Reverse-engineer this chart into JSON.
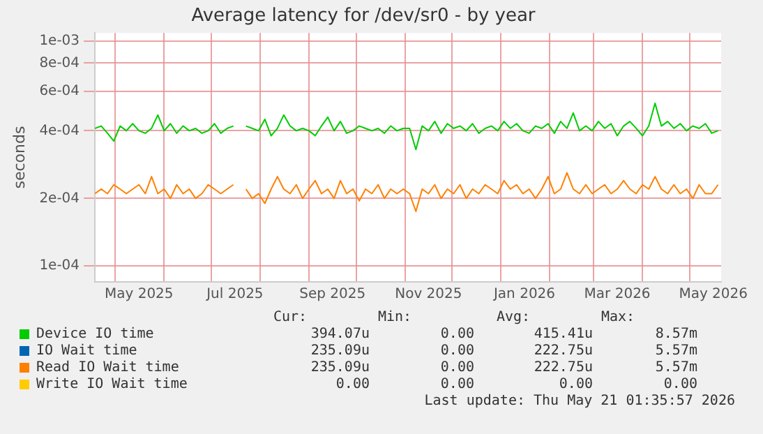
{
  "chart_data": {
    "type": "line",
    "title": "Average latency for /dev/sr0 - by year",
    "ylabel": "seconds",
    "log": "y",
    "grid": true,
    "legend": "bottom",
    "marker": "none",
    "line_style": "solid",
    "xlim": [
      "2025-04-18",
      "2026-05-21"
    ],
    "xticks": [
      {
        "value": "2025-05-01",
        "label": null
      },
      {
        "value": "2025-05-16",
        "label": "May 2025"
      },
      {
        "value": "2025-06-01",
        "label": null
      },
      {
        "value": "2025-07-01",
        "label": null
      },
      {
        "value": "2025-07-16",
        "label": "Jul 2025"
      },
      {
        "value": "2025-08-01",
        "label": null
      },
      {
        "value": "2025-09-01",
        "label": null
      },
      {
        "value": "2025-09-16",
        "label": "Sep 2025"
      },
      {
        "value": "2025-10-01",
        "label": null
      },
      {
        "value": "2025-11-01",
        "label": null
      },
      {
        "value": "2025-11-16",
        "label": "Nov 2025"
      },
      {
        "value": "2025-12-01",
        "label": null
      },
      {
        "value": "2026-01-01",
        "label": null
      },
      {
        "value": "2026-01-16",
        "label": "Jan 2026"
      },
      {
        "value": "2026-02-01",
        "label": null
      },
      {
        "value": "2026-03-01",
        "label": null
      },
      {
        "value": "2026-03-16",
        "label": "Mar 2026"
      },
      {
        "value": "2026-04-01",
        "label": null
      },
      {
        "value": "2026-05-01",
        "label": null
      },
      {
        "value": "2026-05-16",
        "label": "May 2026"
      }
    ],
    "ylim": [
      8.5e-05,
      0.00109
    ],
    "yticks": [
      {
        "value": 0.0001,
        "label": "1e-04"
      },
      {
        "value": 0.0002,
        "label": "2e-04"
      },
      {
        "value": 0.0004,
        "label": "4e-04"
      },
      {
        "value": 0.0006,
        "label": "6e-04"
      },
      {
        "value": 0.0008,
        "label": "8e-04"
      },
      {
        "value": 0.001,
        "label": "1e-03"
      }
    ],
    "x": [
      "2025-04-18",
      "2025-04-22",
      "2025-04-26",
      "2025-04-30",
      "2025-05-04",
      "2025-05-08",
      "2025-05-12",
      "2025-05-16",
      "2025-05-20",
      "2025-05-24",
      "2025-05-28",
      "2025-06-01",
      "2025-06-05",
      "2025-06-09",
      "2025-06-13",
      "2025-06-17",
      "2025-06-21",
      "2025-06-25",
      "2025-06-29",
      "2025-07-03",
      "2025-07-07",
      "2025-07-11",
      "2025-07-15",
      "2025-07-19",
      "2025-07-23",
      "2025-07-27",
      "2025-07-31",
      "2025-08-04",
      "2025-08-08",
      "2025-08-12",
      "2025-08-16",
      "2025-08-20",
      "2025-08-24",
      "2025-08-28",
      "2025-09-01",
      "2025-09-05",
      "2025-09-09",
      "2025-09-13",
      "2025-09-17",
      "2025-09-21",
      "2025-09-25",
      "2025-09-29",
      "2025-10-03",
      "2025-10-07",
      "2025-10-11",
      "2025-10-15",
      "2025-10-19",
      "2025-10-23",
      "2025-10-27",
      "2025-10-31",
      "2025-11-04",
      "2025-11-08",
      "2025-11-12",
      "2025-11-16",
      "2025-11-20",
      "2025-11-24",
      "2025-11-28",
      "2025-12-02",
      "2025-12-06",
      "2025-12-10",
      "2025-12-14",
      "2025-12-18",
      "2025-12-22",
      "2025-12-26",
      "2025-12-30",
      "2026-01-03",
      "2026-01-07",
      "2026-01-11",
      "2026-01-15",
      "2026-01-19",
      "2026-01-23",
      "2026-01-27",
      "2026-01-31",
      "2026-02-04",
      "2026-02-08",
      "2026-02-12",
      "2026-02-16",
      "2026-02-20",
      "2026-02-24",
      "2026-02-28",
      "2026-03-04",
      "2026-03-08",
      "2026-03-12",
      "2026-03-16",
      "2026-03-20",
      "2026-03-24",
      "2026-03-28",
      "2026-04-01",
      "2026-04-05",
      "2026-04-09",
      "2026-04-13",
      "2026-04-17",
      "2026-04-21",
      "2026-04-25",
      "2026-04-29",
      "2026-05-03",
      "2026-05-07",
      "2026-05-11",
      "2026-05-15",
      "2026-05-19"
    ],
    "series": [
      {
        "name": "Device IO time",
        "color": "#00cc00",
        "values": [
          0.00041,
          0.00042,
          0.00039,
          0.00036,
          0.00042,
          0.0004,
          0.00043,
          0.0004,
          0.00039,
          0.00041,
          0.00047,
          0.0004,
          0.00043,
          0.00039,
          0.00042,
          0.0004,
          0.00041,
          0.00039,
          0.0004,
          0.00043,
          0.00039,
          0.00041,
          0.00042,
          null,
          0.00042,
          0.00041,
          0.0004,
          0.00045,
          0.00038,
          0.00041,
          0.00047,
          0.00042,
          0.0004,
          0.00041,
          0.0004,
          0.00038,
          0.00042,
          0.00046,
          0.0004,
          0.00044,
          0.00039,
          0.0004,
          0.00042,
          0.00041,
          0.0004,
          0.00041,
          0.00039,
          0.00042,
          0.0004,
          0.00041,
          0.00041,
          0.00033,
          0.00042,
          0.0004,
          0.00044,
          0.00039,
          0.00043,
          0.00041,
          0.00042,
          0.0004,
          0.00043,
          0.00039,
          0.00041,
          0.00042,
          0.0004,
          0.00044,
          0.00041,
          0.00043,
          0.0004,
          0.00039,
          0.00042,
          0.00041,
          0.00043,
          0.00039,
          0.00044,
          0.00041,
          0.00048,
          0.0004,
          0.00042,
          0.0004,
          0.00044,
          0.00041,
          0.00043,
          0.00038,
          0.00042,
          0.00044,
          0.00041,
          0.00038,
          0.00042,
          0.00053,
          0.00042,
          0.00044,
          0.00041,
          0.00043,
          0.0004,
          0.00042,
          0.00041,
          0.00043,
          0.00039,
          0.0004
        ]
      },
      {
        "name": "IO Wait time",
        "color": "#0066b3",
        "values": [
          null,
          null,
          null,
          null,
          null,
          null,
          null,
          null,
          null,
          null,
          null,
          null,
          null,
          null,
          null,
          null,
          null,
          null,
          null,
          null,
          null,
          null,
          null,
          null,
          null,
          null,
          null,
          null,
          null,
          null,
          null,
          null,
          null,
          null,
          null,
          null,
          null,
          null,
          null,
          null,
          null,
          null,
          null,
          null,
          null,
          null,
          null,
          null,
          null,
          null,
          null,
          null,
          null,
          null,
          null,
          null,
          null,
          null,
          null,
          null,
          null,
          null,
          null,
          null,
          null,
          null,
          null,
          null,
          null,
          null,
          null,
          null,
          null,
          null,
          null,
          null,
          null,
          null,
          null,
          null,
          null,
          null,
          null,
          null,
          null,
          null,
          null,
          null,
          null,
          null,
          null,
          null,
          null,
          null,
          null,
          null,
          null,
          null,
          null,
          null
        ]
      },
      {
        "name": "Read IO Wait time",
        "color": "#ff8000",
        "values": [
          0.00021,
          0.00022,
          0.00021,
          0.00023,
          0.00022,
          0.00021,
          0.00022,
          0.00023,
          0.00021,
          0.00025,
          0.00021,
          0.00022,
          0.0002,
          0.00023,
          0.00021,
          0.00022,
          0.0002,
          0.00021,
          0.00023,
          0.00022,
          0.00021,
          0.00022,
          0.00023,
          null,
          0.00022,
          0.0002,
          0.00021,
          0.00019,
          0.00022,
          0.00025,
          0.00022,
          0.00021,
          0.00023,
          0.0002,
          0.00022,
          0.00024,
          0.00021,
          0.00022,
          0.0002,
          0.00024,
          0.00021,
          0.00022,
          0.000195,
          0.00022,
          0.00021,
          0.00023,
          0.0002,
          0.00022,
          0.00021,
          0.00022,
          0.00021,
          0.000175,
          0.00022,
          0.00021,
          0.00023,
          0.0002,
          0.00022,
          0.00021,
          0.00023,
          0.0002,
          0.00022,
          0.00021,
          0.00023,
          0.00022,
          0.00021,
          0.00024,
          0.00022,
          0.00023,
          0.00021,
          0.00022,
          0.0002,
          0.00022,
          0.00025,
          0.00021,
          0.00022,
          0.00026,
          0.00022,
          0.00021,
          0.00023,
          0.00021,
          0.00022,
          0.00023,
          0.00021,
          0.00022,
          0.00024,
          0.00022,
          0.00021,
          0.00023,
          0.00022,
          0.00025,
          0.00022,
          0.00021,
          0.00023,
          0.00021,
          0.00022,
          0.0002,
          0.00023,
          0.00021,
          0.00021,
          0.00023
        ]
      },
      {
        "name": "Write IO Wait time",
        "color": "#ffcc00",
        "values": [
          null,
          null,
          null,
          null,
          null,
          null,
          null,
          null,
          null,
          null,
          null,
          null,
          null,
          null,
          null,
          null,
          null,
          null,
          null,
          null,
          null,
          null,
          null,
          null,
          null,
          null,
          null,
          null,
          null,
          null,
          null,
          null,
          null,
          null,
          null,
          null,
          null,
          null,
          null,
          null,
          null,
          null,
          null,
          null,
          null,
          null,
          null,
          null,
          null,
          null,
          null,
          null,
          null,
          null,
          null,
          null,
          null,
          null,
          null,
          null,
          null,
          null,
          null,
          null,
          null,
          null,
          null,
          null,
          null,
          null,
          null,
          null,
          null,
          null,
          null,
          null,
          null,
          null,
          null,
          null,
          null,
          null,
          null,
          null,
          null,
          null,
          null,
          null,
          null,
          null,
          null,
          null,
          null,
          null,
          null,
          null,
          null,
          null,
          null,
          null
        ]
      }
    ],
    "annotations": [
      "Cur:",
      "Min:",
      "Avg:",
      "Max:",
      "394.07u",
      "0.00",
      "415.41u",
      "8.57m",
      "235.09u",
      "0.00",
      "222.75u",
      "5.57m",
      "235.09u",
      "0.00",
      "222.75u",
      "5.57m",
      "0.00",
      "0.00",
      "0.00",
      "0.00",
      "Last update: Thu May 21 01:35:57 2026"
    ]
  }
}
